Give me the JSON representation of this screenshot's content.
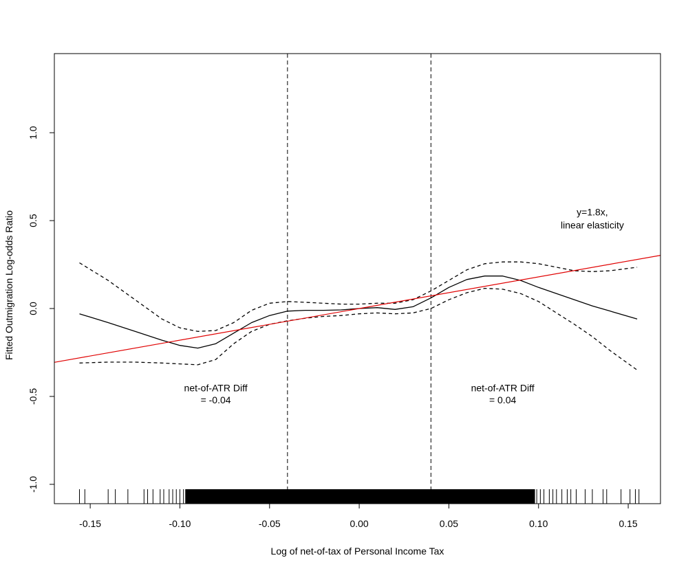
{
  "chart_data": {
    "type": "line",
    "title": "",
    "xlabel": "Log of net-of-tax of Personal Income Tax",
    "ylabel": "Fitted Outmigration Log-odds Ratio",
    "xlim": [
      -0.17,
      0.168
    ],
    "ylim": [
      -1.11,
      1.45
    ],
    "x_ticks": [
      -0.15,
      -0.1,
      -0.05,
      0.0,
      0.05,
      0.1,
      0.15
    ],
    "x_tick_labels": [
      "-0.15",
      "-0.10",
      "-0.05",
      "0.00",
      "0.05",
      "0.10",
      "0.15"
    ],
    "y_ticks": [
      -1.0,
      -0.5,
      0.0,
      0.5,
      1.0
    ],
    "y_tick_labels": [
      "-1.0",
      "-0.5",
      "0.0",
      "0.5",
      "1.0"
    ],
    "grid": false,
    "series": [
      {
        "style": "solid",
        "color": "#000000",
        "x": [
          -0.156,
          -0.14,
          -0.125,
          -0.11,
          -0.1,
          -0.09,
          -0.08,
          -0.07,
          -0.06,
          -0.05,
          -0.04,
          -0.03,
          -0.02,
          -0.01,
          0.0,
          0.01,
          0.02,
          0.03,
          0.04,
          0.05,
          0.06,
          0.07,
          0.08,
          0.09,
          0.1,
          0.11,
          0.12,
          0.13,
          0.14,
          0.155
        ],
        "y": [
          -0.03,
          -0.08,
          -0.13,
          -0.18,
          -0.21,
          -0.225,
          -0.2,
          -0.14,
          -0.08,
          -0.04,
          -0.015,
          -0.01,
          -0.01,
          -0.008,
          0.0,
          0.005,
          -0.005,
          0.01,
          0.06,
          0.12,
          0.165,
          0.185,
          0.185,
          0.16,
          0.12,
          0.085,
          0.05,
          0.015,
          -0.015,
          -0.06
        ]
      },
      {
        "style": "dashed",
        "color": "#000000",
        "x": [
          -0.156,
          -0.14,
          -0.125,
          -0.11,
          -0.1,
          -0.09,
          -0.08,
          -0.07,
          -0.06,
          -0.05,
          -0.04,
          -0.03,
          -0.02,
          -0.01,
          0.0,
          0.01,
          0.02,
          0.03,
          0.04,
          0.05,
          0.06,
          0.07,
          0.08,
          0.09,
          0.1,
          0.11,
          0.12,
          0.13,
          0.14,
          0.155
        ],
        "y": [
          0.26,
          0.16,
          0.05,
          -0.06,
          -0.11,
          -0.13,
          -0.125,
          -0.08,
          -0.01,
          0.03,
          0.04,
          0.035,
          0.03,
          0.025,
          0.025,
          0.03,
          0.03,
          0.05,
          0.1,
          0.16,
          0.22,
          0.255,
          0.265,
          0.265,
          0.255,
          0.235,
          0.215,
          0.21,
          0.215,
          0.235
        ]
      },
      {
        "style": "dashed",
        "color": "#000000",
        "x": [
          -0.156,
          -0.14,
          -0.125,
          -0.11,
          -0.1,
          -0.09,
          -0.08,
          -0.07,
          -0.06,
          -0.05,
          -0.04,
          -0.03,
          -0.02,
          -0.01,
          0.0,
          0.01,
          0.02,
          0.03,
          0.04,
          0.05,
          0.06,
          0.07,
          0.08,
          0.09,
          0.1,
          0.11,
          0.12,
          0.13,
          0.14,
          0.155
        ],
        "y": [
          -0.31,
          -0.305,
          -0.305,
          -0.31,
          -0.315,
          -0.32,
          -0.29,
          -0.2,
          -0.13,
          -0.09,
          -0.07,
          -0.055,
          -0.045,
          -0.04,
          -0.03,
          -0.025,
          -0.03,
          -0.025,
          0.0,
          0.05,
          0.09,
          0.115,
          0.11,
          0.085,
          0.04,
          -0.025,
          -0.09,
          -0.16,
          -0.24,
          -0.35
        ]
      },
      {
        "style": "solid",
        "color": "#e00000",
        "x": [
          -0.17,
          0.168
        ],
        "y": [
          -0.306,
          0.3024
        ]
      }
    ],
    "vlines": [
      -0.04,
      0.04
    ],
    "annotations": [
      {
        "text": "net-of-ATR Diff",
        "x": -0.08,
        "y": -0.47
      },
      {
        "text": "= -0.04",
        "x": -0.08,
        "y": -0.54
      },
      {
        "text": "net-of-ATR Diff",
        "x": 0.08,
        "y": -0.47
      },
      {
        "text": "= 0.04",
        "x": 0.08,
        "y": -0.54
      },
      {
        "text": "y=1.8x,",
        "x": 0.13,
        "y": 0.53
      },
      {
        "text": "linear elasticity",
        "x": 0.13,
        "y": 0.455
      }
    ],
    "rug_x": [
      -0.156,
      -0.153,
      -0.14,
      -0.136,
      -0.129,
      -0.12,
      -0.118,
      -0.115,
      -0.111,
      -0.109,
      -0.106,
      -0.104,
      -0.102,
      -0.1,
      -0.098,
      -0.096,
      -0.094,
      -0.092,
      -0.09,
      -0.087,
      -0.085,
      -0.083,
      -0.081,
      -0.079,
      -0.077,
      -0.075,
      -0.073,
      -0.071,
      -0.069,
      -0.067,
      -0.065,
      -0.063,
      -0.061,
      -0.059,
      -0.057,
      -0.055,
      -0.053,
      -0.051,
      -0.049,
      -0.047,
      -0.045,
      -0.043,
      -0.041,
      -0.039,
      -0.037,
      -0.035,
      -0.033,
      -0.031,
      -0.029,
      -0.027,
      -0.025,
      -0.023,
      -0.021,
      -0.019,
      -0.017,
      -0.015,
      -0.013,
      -0.011,
      -0.009,
      -0.007,
      -0.005,
      -0.003,
      -0.001,
      0.001,
      0.003,
      0.005,
      0.007,
      0.009,
      0.011,
      0.013,
      0.015,
      0.017,
      0.019,
      0.021,
      0.023,
      0.025,
      0.027,
      0.029,
      0.031,
      0.033,
      0.035,
      0.037,
      0.039,
      0.041,
      0.043,
      0.045,
      0.047,
      0.049,
      0.051,
      0.053,
      0.055,
      0.057,
      0.059,
      0.061,
      0.063,
      0.065,
      0.067,
      0.069,
      0.071,
      0.073,
      0.075,
      0.077,
      0.079,
      0.081,
      0.083,
      0.085,
      0.087,
      0.089,
      0.091,
      0.093,
      0.095,
      0.097,
      0.099,
      0.101,
      0.103,
      0.106,
      0.108,
      0.11,
      0.113,
      0.116,
      0.118,
      0.121,
      0.126,
      0.13,
      0.136,
      0.138,
      0.146,
      0.151,
      0.154,
      0.156
    ]
  }
}
